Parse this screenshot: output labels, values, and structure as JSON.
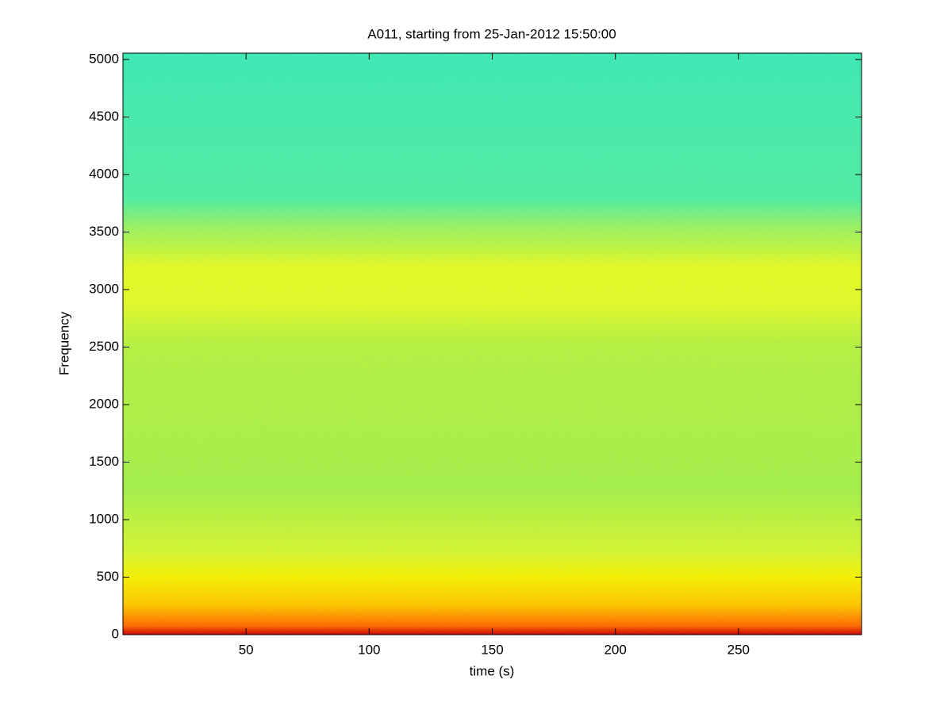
{
  "chart_data": {
    "type": "spectrogram",
    "title": "A011, starting from 25-Jan-2012 15:50:00",
    "x_label": "time (s)",
    "y_label": "Frequency",
    "xlim": [
      0,
      300
    ],
    "xticks": [
      50,
      100,
      150,
      200,
      250
    ],
    "ylim": [
      0,
      5055
    ],
    "yticks": [
      0,
      500,
      1000,
      1500,
      2000,
      2500,
      3000,
      3500,
      4000,
      4500,
      5000
    ]
  }
}
